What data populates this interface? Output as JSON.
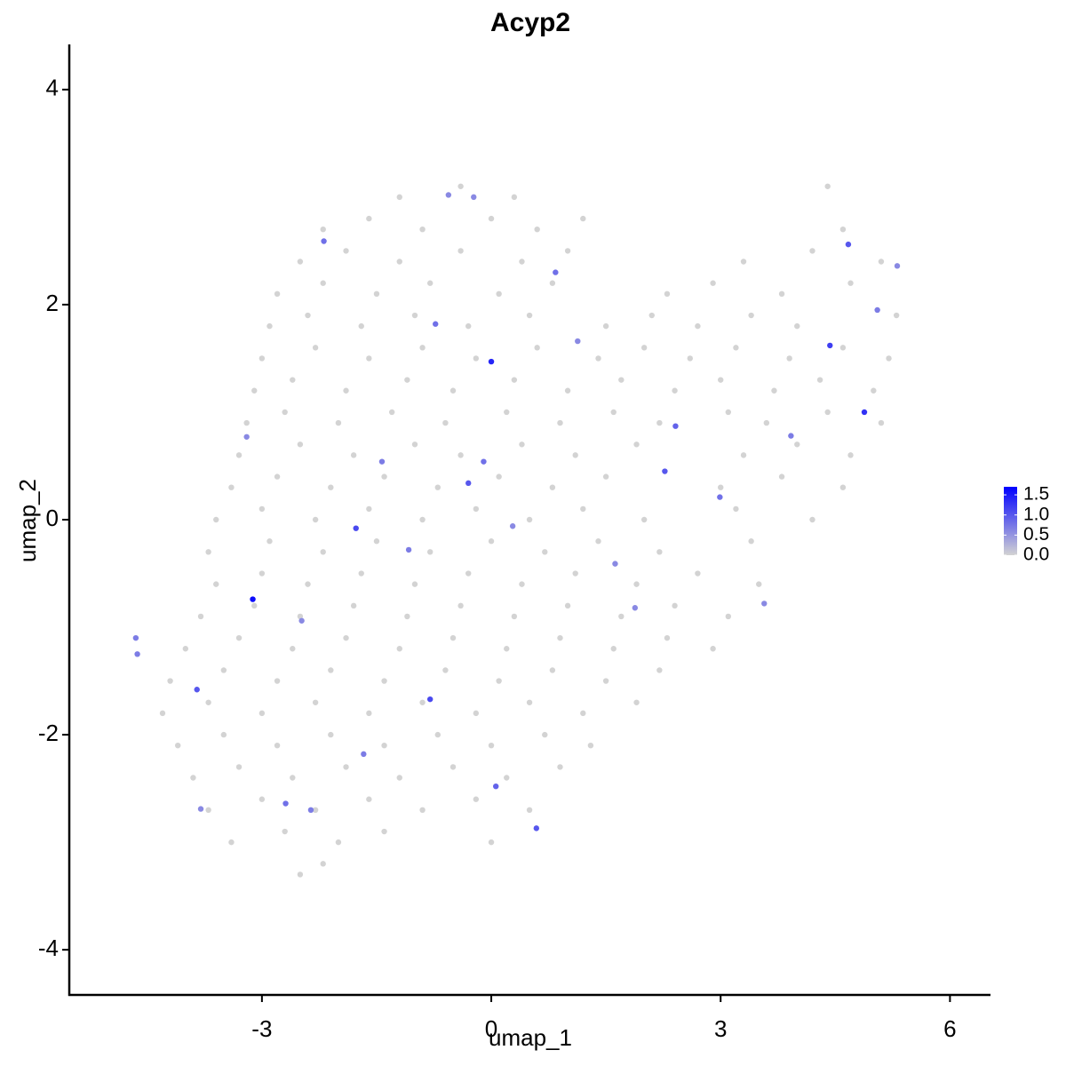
{
  "chart_data": {
    "type": "scatter",
    "title": "Acyp2",
    "x_label": "umap_1",
    "y_label": "umap_2",
    "x": [
      -1.2,
      -0.4,
      0.3,
      4.4,
      -2.2,
      -1.6,
      -0.9,
      0.0,
      0.6,
      1.2,
      4.6,
      -2.5,
      -1.9,
      -1.2,
      -0.4,
      0.4,
      1.0,
      3.3,
      4.2,
      5.1,
      -2.8,
      -2.2,
      -1.5,
      -0.8,
      0.1,
      0.8,
      2.3,
      2.9,
      3.8,
      4.7,
      -2.9,
      -2.4,
      -1.7,
      -1.0,
      -0.3,
      0.5,
      1.5,
      2.1,
      2.7,
      3.4,
      4.0,
      5.3,
      -3.0,
      -2.3,
      -1.6,
      -0.9,
      -0.2,
      0.6,
      1.4,
      2.0,
      2.6,
      3.2,
      3.9,
      4.6,
      5.2,
      -3.1,
      -2.6,
      -1.9,
      -1.1,
      -0.5,
      0.3,
      1.0,
      1.7,
      2.4,
      3.0,
      3.7,
      4.3,
      5.0,
      -3.2,
      -2.7,
      -2.0,
      -1.3,
      -0.6,
      0.2,
      0.9,
      1.6,
      2.2,
      3.1,
      3.6,
      4.4,
      5.1,
      -3.3,
      -2.5,
      -1.8,
      -1.0,
      -0.4,
      0.4,
      1.1,
      1.9,
      3.3,
      4.0,
      4.7,
      -3.4,
      -2.8,
      -2.1,
      -1.4,
      -0.7,
      0.1,
      0.8,
      1.5,
      3.0,
      3.8,
      4.6,
      -3.6,
      -3.0,
      -2.3,
      -1.6,
      -0.9,
      -0.2,
      0.5,
      1.2,
      2.0,
      3.2,
      4.2,
      -3.7,
      -2.9,
      -2.2,
      -1.5,
      -0.8,
      0.0,
      0.7,
      1.4,
      2.2,
      3.4,
      -3.6,
      -3.0,
      -2.4,
      -1.7,
      -1.0,
      -0.3,
      0.4,
      1.1,
      1.9,
      2.7,
      3.5,
      -3.8,
      -3.1,
      -2.5,
      -1.8,
      -1.1,
      -0.4,
      0.3,
      1.0,
      1.7,
      2.4,
      3.1,
      -4.0,
      -3.3,
      -2.6,
      -1.9,
      -1.2,
      -0.5,
      0.2,
      0.9,
      1.6,
      2.3,
      2.9,
      -4.2,
      -3.5,
      -2.8,
      -2.1,
      -1.4,
      -0.6,
      0.1,
      0.8,
      1.5,
      2.2,
      -4.3,
      -3.7,
      -3.0,
      -2.3,
      -1.6,
      -0.9,
      -0.2,
      0.5,
      1.2,
      1.9,
      -4.1,
      -3.5,
      -2.8,
      -2.1,
      -1.4,
      -0.7,
      0.0,
      0.7,
      1.3,
      -3.9,
      -3.3,
      -2.6,
      -1.9,
      -1.2,
      -0.5,
      0.2,
      0.9,
      -3.7,
      -3.0,
      -2.3,
      -1.6,
      -0.9,
      -0.2,
      0.5,
      -3.4,
      -2.7,
      -2.0,
      -1.4,
      0.0,
      -2.5,
      -2.2,
      -3.12,
      0.0,
      4.88,
      4.43,
      -0.8,
      -1.77,
      -3.85,
      0.59,
      2.27,
      4.67,
      2.41,
      -4.65,
      -4.63,
      -0.3,
      -0.1,
      0.06,
      -2.19,
      -0.73,
      0.84,
      3.92,
      2.99,
      1.62,
      -2.69,
      5.05,
      -3.2,
      -0.23,
      -0.56,
      -1.43,
      -1.08,
      0.28,
      -2.48,
      1.13,
      1.88,
      3.57,
      5.31,
      -3.8,
      -1.67,
      -2.36
    ],
    "y": [
      3.0,
      3.1,
      3.0,
      3.1,
      2.7,
      2.8,
      2.7,
      2.8,
      2.7,
      2.8,
      2.7,
      2.4,
      2.5,
      2.4,
      2.5,
      2.4,
      2.5,
      2.4,
      2.5,
      2.4,
      2.1,
      2.2,
      2.1,
      2.2,
      2.1,
      2.2,
      2.1,
      2.2,
      2.1,
      2.2,
      1.8,
      1.9,
      1.8,
      1.9,
      1.8,
      1.9,
      1.8,
      1.9,
      1.8,
      1.9,
      1.8,
      1.9,
      1.5,
      1.6,
      1.5,
      1.6,
      1.5,
      1.6,
      1.5,
      1.6,
      1.5,
      1.6,
      1.5,
      1.6,
      1.5,
      1.2,
      1.3,
      1.2,
      1.3,
      1.2,
      1.3,
      1.2,
      1.3,
      1.2,
      1.3,
      1.2,
      1.3,
      1.2,
      0.9,
      1.0,
      0.9,
      1.0,
      0.9,
      1.0,
      0.9,
      1.0,
      0.9,
      1.0,
      0.9,
      1.0,
      0.9,
      0.6,
      0.7,
      0.6,
      0.7,
      0.6,
      0.7,
      0.6,
      0.7,
      0.6,
      0.7,
      0.6,
      0.3,
      0.4,
      0.3,
      0.4,
      0.3,
      0.4,
      0.3,
      0.4,
      0.3,
      0.4,
      0.3,
      0.0,
      0.1,
      0.0,
      0.1,
      0.0,
      0.1,
      0.0,
      0.1,
      0.0,
      0.1,
      0.0,
      -0.3,
      -0.2,
      -0.3,
      -0.2,
      -0.3,
      -0.2,
      -0.3,
      -0.2,
      -0.3,
      -0.2,
      -0.6,
      -0.5,
      -0.6,
      -0.5,
      -0.6,
      -0.5,
      -0.6,
      -0.5,
      -0.6,
      -0.5,
      -0.6,
      -0.9,
      -0.8,
      -0.9,
      -0.8,
      -0.9,
      -0.8,
      -0.9,
      -0.8,
      -0.9,
      -0.8,
      -0.9,
      -1.2,
      -1.1,
      -1.2,
      -1.1,
      -1.2,
      -1.1,
      -1.2,
      -1.1,
      -1.2,
      -1.1,
      -1.2,
      -1.5,
      -1.4,
      -1.5,
      -1.4,
      -1.5,
      -1.4,
      -1.5,
      -1.4,
      -1.5,
      -1.4,
      -1.8,
      -1.7,
      -1.8,
      -1.7,
      -1.8,
      -1.7,
      -1.8,
      -1.7,
      -1.8,
      -1.7,
      -2.1,
      -2.0,
      -2.1,
      -2.0,
      -2.1,
      -2.0,
      -2.1,
      -2.0,
      -2.1,
      -2.4,
      -2.3,
      -2.4,
      -2.3,
      -2.4,
      -2.3,
      -2.4,
      -2.3,
      -2.7,
      -2.6,
      -2.7,
      -2.6,
      -2.7,
      -2.6,
      -2.7,
      -3.0,
      -2.9,
      -3.0,
      -2.9,
      -3.0,
      -3.3,
      -3.2,
      -0.74,
      1.47,
      1.0,
      1.62,
      -1.67,
      -0.08,
      -1.58,
      -2.87,
      0.45,
      2.56,
      0.87,
      -1.1,
      -1.25,
      0.34,
      0.54,
      -2.48,
      2.59,
      1.82,
      2.3,
      0.78,
      0.21,
      -0.41,
      -2.64,
      1.95,
      0.77,
      3.0,
      3.02,
      0.54,
      -0.28,
      -0.06,
      -0.94,
      1.66,
      -0.82,
      -0.78,
      2.36,
      -2.69,
      -2.18,
      -2.7
    ],
    "expression": [
      0,
      0,
      0,
      0,
      0,
      0,
      0,
      0,
      0,
      0,
      0,
      0,
      0,
      0,
      0,
      0,
      0,
      0,
      0,
      0,
      0,
      0,
      0,
      0,
      0,
      0,
      0,
      0,
      0,
      0,
      0,
      0,
      0,
      0,
      0,
      0,
      0,
      0,
      0,
      0,
      0,
      0,
      0,
      0,
      0,
      0,
      0,
      0,
      0,
      0,
      0,
      0,
      0,
      0,
      0,
      0,
      0,
      0,
      0,
      0,
      0,
      0,
      0,
      0,
      0,
      0,
      0,
      0,
      0,
      0,
      0,
      0,
      0,
      0,
      0,
      0,
      0,
      0,
      0,
      0,
      0,
      0,
      0,
      0,
      0,
      0,
      0,
      0,
      0,
      0,
      0,
      0,
      0,
      0,
      0,
      0,
      0,
      0,
      0,
      0,
      0,
      0,
      0,
      0,
      0,
      0,
      0,
      0,
      0,
      0,
      0,
      0,
      0,
      0,
      0,
      0,
      0,
      0,
      0,
      0,
      0,
      0,
      0,
      0,
      0,
      0,
      0,
      0,
      0,
      0,
      0,
      0,
      0,
      0,
      0,
      0,
      0,
      0,
      0,
      0,
      0,
      0,
      0,
      0,
      0,
      0,
      0,
      0,
      0,
      0,
      0,
      0,
      0,
      0,
      0,
      0,
      0,
      0,
      0,
      0,
      0,
      0,
      0,
      0,
      0,
      0,
      0,
      0,
      0,
      0,
      0,
      0,
      0,
      0,
      0,
      0,
      0,
      0,
      0,
      0,
      0,
      0,
      0,
      0,
      0,
      0,
      0,
      0,
      0,
      0,
      0,
      0,
      0,
      0,
      0,
      0,
      0,
      0,
      0,
      0,
      0,
      0,
      0,
      0,
      0,
      0,
      0,
      0,
      1.6,
      1.4,
      1.3,
      1.2,
      1.1,
      1.1,
      1.0,
      1.0,
      1.0,
      1.0,
      0.9,
      0.7,
      0.7,
      1.0,
      0.8,
      0.9,
      0.8,
      0.8,
      0.8,
      0.7,
      0.8,
      0.6,
      0.8,
      0.7,
      0.6,
      0.6,
      0.6,
      0.7,
      0.7,
      0.6,
      0.6,
      0.6,
      0.6,
      0.6,
      0.6,
      0.6,
      0.7,
      0.7
    ],
    "xlim": [
      -5.52,
      6.53
    ],
    "ylim": [
      -4.42,
      4.42
    ],
    "xticks": [
      -3,
      0,
      3,
      6
    ],
    "yticks": [
      -4,
      -2,
      0,
      2,
      4
    ],
    "grid": false,
    "colorbar": {
      "colors": [
        "#d3d3d3",
        "#0000ff"
      ],
      "lim": [
        0,
        1.7
      ],
      "ticks": [
        {
          "value": 0,
          "label": "0.0"
        },
        {
          "value": 0.5,
          "label": "0.5"
        },
        {
          "value": 1,
          "label": "1.0"
        },
        {
          "value": 1.5,
          "label": "1.5"
        }
      ]
    }
  }
}
